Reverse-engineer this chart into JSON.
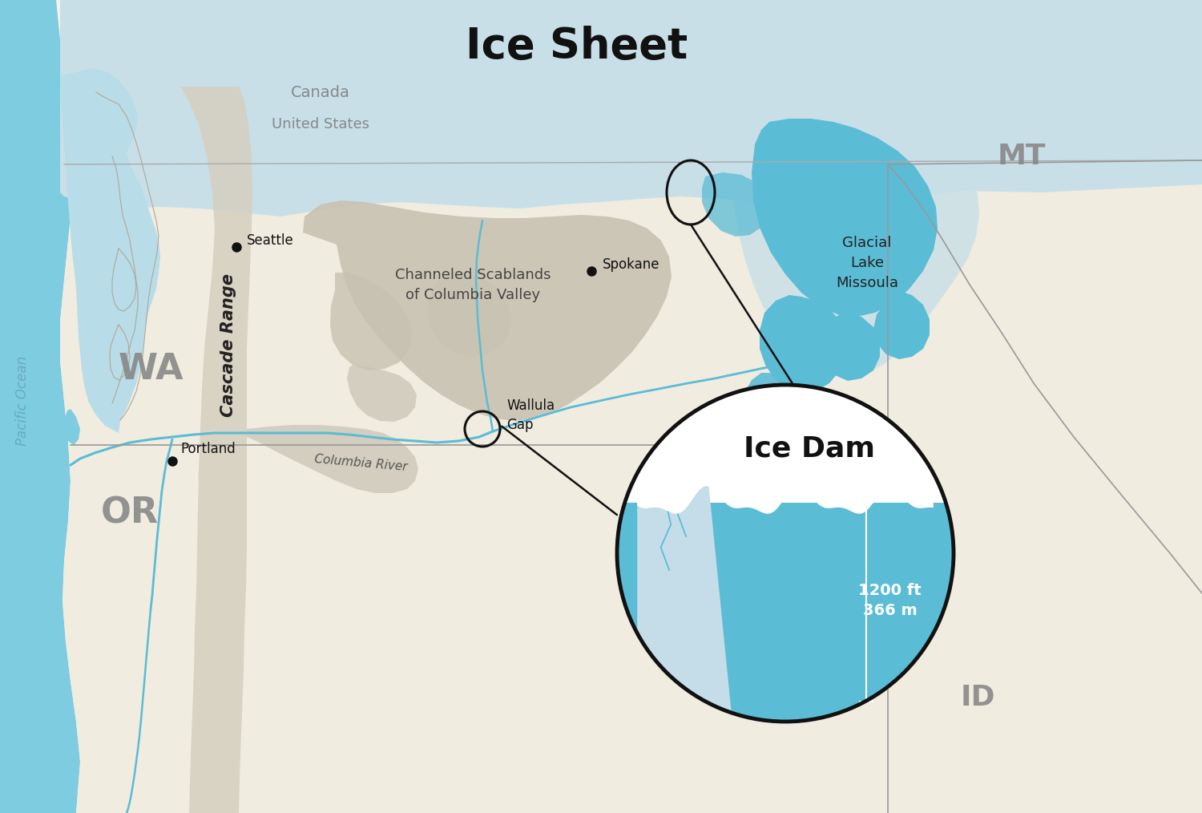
{
  "bg_color": "#f5f1e8",
  "ocean_color": "#7ecce0",
  "ocean_light": "#b8dce8",
  "ice_sheet_color": "#c8dfe8",
  "glacier_lake_color": "#5bbcd6",
  "scablands_color": "#c8c2b2",
  "cascade_color": "#d5cfc0",
  "land_color": "#f0ece0",
  "state_line_color": "#999999",
  "border_line_color": "#aaaaaa",
  "river_color": "#5bbcd6",
  "river_dark": "#8ab4c0",
  "title_text": "Ice Sheet",
  "canada_label": "Canada",
  "us_label": "United States"
}
